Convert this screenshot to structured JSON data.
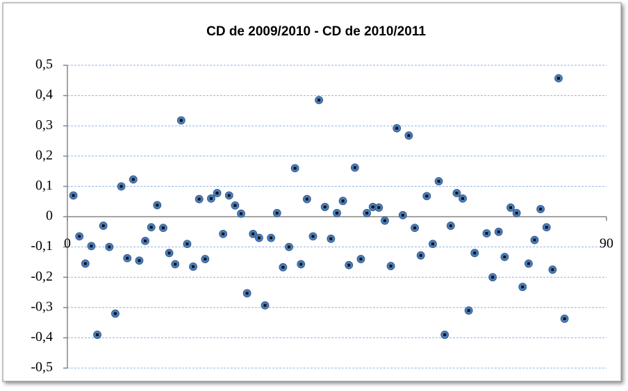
{
  "chart_data": {
    "type": "scatter",
    "title": "CD de 2009/2010 - CD de 2010/2011",
    "x": [
      1,
      2,
      3,
      4,
      5,
      6,
      7,
      8,
      9,
      10,
      11,
      12,
      13,
      14,
      15,
      16,
      17,
      18,
      19,
      20,
      21,
      22,
      23,
      24,
      25,
      26,
      27,
      28,
      29,
      30,
      31,
      32,
      33,
      34,
      35,
      36,
      37,
      38,
      39,
      40,
      41,
      42,
      43,
      44,
      45,
      46,
      47,
      48,
      49,
      50,
      51,
      52,
      53,
      54,
      55,
      56,
      57,
      58,
      59,
      60,
      61,
      62,
      63,
      64,
      65,
      66,
      67,
      68,
      70,
      71,
      72,
      73,
      74,
      75,
      76,
      77,
      78,
      79,
      80,
      81,
      82,
      83
    ],
    "series": [
      {
        "color": "#4a7ebb",
        "values": [
          0.07,
          -0.065,
          -0.155,
          -0.097,
          -0.39,
          -0.03,
          -0.1,
          -0.32,
          0.1,
          -0.137,
          0.123,
          -0.145,
          -0.08,
          -0.035,
          0.038,
          -0.037,
          -0.12,
          -0.157,
          0.318,
          -0.09,
          -0.165,
          0.058,
          -0.14,
          0.06,
          0.078,
          -0.057,
          0.07,
          0.037,
          0.01,
          -0.253,
          -0.057,
          -0.07,
          -0.293,
          -0.07,
          0.012,
          -0.167,
          -0.1,
          0.16,
          -0.157,
          0.058,
          -0.065,
          0.385,
          0.032,
          -0.073,
          0.012,
          0.052,
          -0.16,
          0.162,
          -0.14,
          0.012,
          0.032,
          0.03,
          -0.013,
          -0.163,
          0.292,
          0.005,
          0.268,
          -0.037,
          -0.128,
          0.068,
          -0.09,
          0.117,
          -0.39,
          -0.03,
          0.078,
          0.06,
          -0.31,
          -0.12,
          -0.055,
          -0.2,
          -0.05,
          -0.133,
          0.03,
          0.012,
          -0.232,
          -0.155,
          -0.077,
          0.025,
          -0.035,
          -0.175,
          0.457,
          -0.337
        ]
      }
    ],
    "xlim": [
      0,
      90
    ],
    "xticks": [
      0,
      90
    ],
    "ylim": [
      -0.5,
      0.5
    ],
    "yticks": [
      {
        "value": -0.5,
        "label": "-0,5"
      },
      {
        "value": -0.4,
        "label": "-0,4"
      },
      {
        "value": -0.3,
        "label": "-0,3"
      },
      {
        "value": -0.2,
        "label": "-0,2"
      },
      {
        "value": -0.1,
        "label": "-0,1"
      },
      0,
      {
        "value": 0.1,
        "label": "0,1"
      },
      {
        "value": 0.2,
        "label": "0,2"
      },
      {
        "value": 0.3,
        "label": "0,3"
      },
      {
        "value": 0.4,
        "label": "0,4"
      },
      {
        "value": 0.5,
        "label": "0,5"
      }
    ],
    "grid": true
  }
}
